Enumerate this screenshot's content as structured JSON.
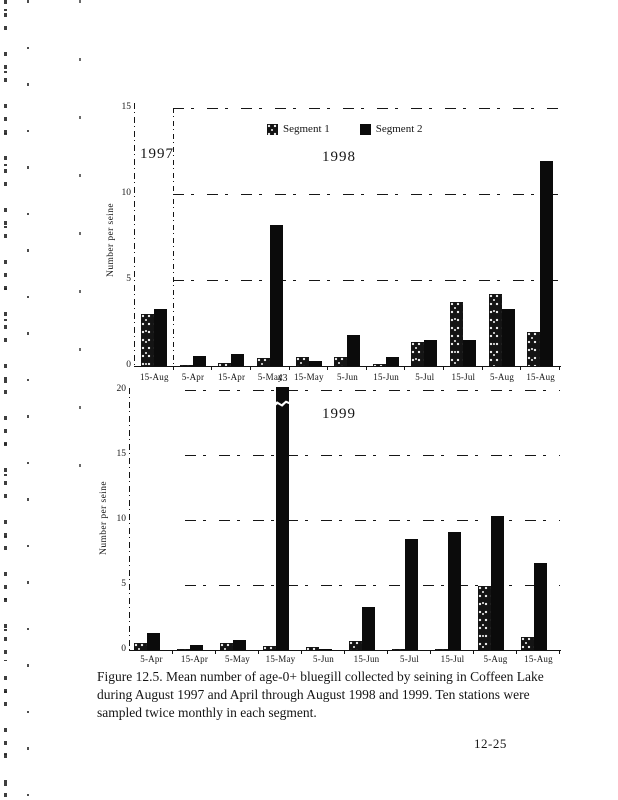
{
  "figure": {
    "caption_line1": "Figure 12.5.  Mean number of age-0+ bluegill collected by seining in Coffeen Lake",
    "caption_line2": "during August 1997 and April through August 1998 and 1999.  Ten stations were",
    "caption_line3": "sampled twice monthly in each segment.",
    "page_number": "12-25"
  },
  "colors": {
    "paper": "#ffffff",
    "ink": "#151515",
    "segment1_bar": "#141414",
    "segment2_bar": "#0b0b0b"
  },
  "chart_data": [
    {
      "type": "bar",
      "panel_labels": [
        "1997",
        "1998"
      ],
      "ylabel": "Number per seine",
      "ylim": [
        0,
        15
      ],
      "yticks": [
        0,
        5,
        10,
        15
      ],
      "grid": "dashed horizontal gridlines at 5, 10, 15",
      "legend_position": "top-center",
      "categories": [
        "15-Aug",
        "5-Apr",
        "15-Apr",
        "5-May",
        "15-May",
        "5-Jun",
        "15-Jun",
        "5-Jul",
        "15-Jul",
        "5-Aug",
        "15-Aug"
      ],
      "series": [
        {
          "name": "Segment 1",
          "values": [
            3.0,
            0.05,
            0.15,
            0.45,
            0.55,
            0.5,
            0.1,
            1.4,
            3.7,
            4.2,
            2.0
          ]
        },
        {
          "name": "Segment 2",
          "values": [
            3.3,
            0.6,
            0.7,
            8.2,
            0.3,
            1.8,
            0.5,
            1.5,
            1.5,
            3.3,
            11.9
          ]
        }
      ],
      "notes": "First category (15-Aug) is 1997; remaining categories are 1998, separated from it by a dashed vertical line"
    },
    {
      "type": "bar",
      "title": "1999",
      "ylabel": "Number per seine",
      "ylim": [
        0,
        20
      ],
      "yticks": [
        0,
        5,
        10,
        15,
        20
      ],
      "grid": "dashed horizontal gridlines at 5, 10, 15, 20",
      "categories": [
        "5-Apr",
        "15-Apr",
        "5-May",
        "15-May",
        "5-Jun",
        "15-Jun",
        "5-Jul",
        "15-Jul",
        "5-Aug",
        "15-Aug"
      ],
      "series": [
        {
          "name": "Segment 1",
          "values": [
            0.5,
            0.05,
            0.5,
            0.3,
            0.25,
            0.7,
            0.05,
            0.05,
            4.9,
            1.0
          ]
        },
        {
          "name": "Segment 2",
          "values": [
            1.3,
            0.35,
            0.75,
            43,
            0.1,
            3.3,
            8.5,
            9.1,
            10.3,
            6.7
          ]
        }
      ],
      "annotation": {
        "category": "15-May",
        "series": "Segment 2",
        "label": "43",
        "note": "bar truncated with axis break symbol"
      }
    }
  ]
}
